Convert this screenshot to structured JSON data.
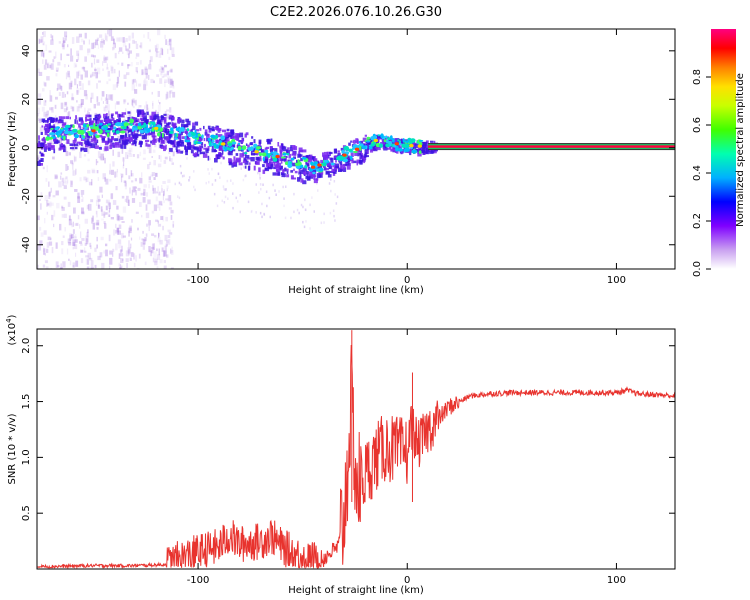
{
  "title": "C2E2.2026.076.10.26.G30",
  "chart_data": [
    {
      "type": "heatmap",
      "xlabel": "Height of straight line (km)",
      "ylabel": "Frequency (Hz)",
      "xlim": [
        -177,
        128
      ],
      "ylim": [
        -50,
        49
      ],
      "xticks": [
        -100,
        0,
        100
      ],
      "yticks": [
        -40,
        -20,
        0,
        20,
        40
      ],
      "trend": [
        {
          "x": -175,
          "f": 6
        },
        {
          "x": -150,
          "f": 7
        },
        {
          "x": -130,
          "f": 9
        },
        {
          "x": -120,
          "f": 8
        },
        {
          "x": -100,
          "f": 4
        },
        {
          "x": -80,
          "f": 0
        },
        {
          "x": -60,
          "f": -4
        },
        {
          "x": -45,
          "f": -8
        },
        {
          "x": -35,
          "f": -5
        },
        {
          "x": -25,
          "f": -1
        },
        {
          "x": -15,
          "f": 3
        },
        {
          "x": 0,
          "f": 1
        },
        {
          "x": 10,
          "f": 0.5
        },
        {
          "x": 128,
          "f": 0.5
        }
      ],
      "colorbar": {
        "label": "Normalized spectral amplitude",
        "range": [
          0,
          1
        ],
        "ticks": [
          "0.0",
          "0.2",
          "0.4",
          "0.6",
          "0.8"
        ]
      }
    },
    {
      "type": "line",
      "xlabel": "Height of straight line (km)",
      "ylabel": "SNR (10 * v/v)",
      "exponent_prefix": "(x10",
      "exponent_power": "4",
      "exponent_suffix": ")",
      "xlim": [
        -177,
        128
      ],
      "ylim": [
        0,
        2.15
      ],
      "xticks": [
        -100,
        0,
        100
      ],
      "yticks": [
        "0.5",
        "1.0",
        "1.5",
        "2.0"
      ],
      "series": [
        {
          "name": "SNR",
          "color": "#e8332e",
          "x": [
            -177,
            -150,
            -130,
            -115,
            -110,
            -100,
            -90,
            -85,
            -80,
            -70,
            -65,
            -60,
            -50,
            -45,
            -40,
            -33,
            -30,
            -28,
            -27,
            -26,
            -25,
            -24,
            -20,
            -15,
            -10,
            -5,
            0,
            2,
            5,
            10,
            15,
            20,
            30,
            40,
            50,
            60,
            70,
            80,
            90,
            100,
            105,
            110,
            120,
            128
          ],
          "y": [
            0.02,
            0.03,
            0.03,
            0.04,
            0.08,
            0.15,
            0.2,
            0.3,
            0.22,
            0.25,
            0.3,
            0.2,
            0.1,
            0.08,
            0.1,
            0.2,
            0.5,
            1.1,
            1.5,
            1.3,
            1.0,
            0.7,
            0.85,
            1.0,
            1.1,
            1.05,
            1.05,
            1.3,
            1.1,
            1.25,
            1.35,
            1.45,
            1.55,
            1.57,
            1.58,
            1.58,
            1.58,
            1.58,
            1.58,
            1.58,
            1.6,
            1.57,
            1.56,
            1.55
          ]
        }
      ],
      "annotations": [
        {
          "x": -26.5,
          "y": 2.14
        },
        {
          "x": 2.5,
          "y": 1.76
        }
      ]
    }
  ]
}
